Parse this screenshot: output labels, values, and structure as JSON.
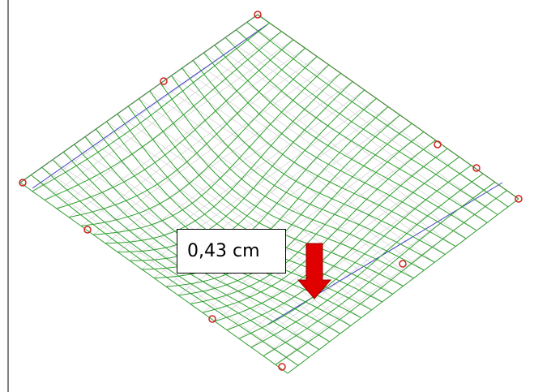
{
  "annotation": {
    "label": "0,43 cm"
  }
}
